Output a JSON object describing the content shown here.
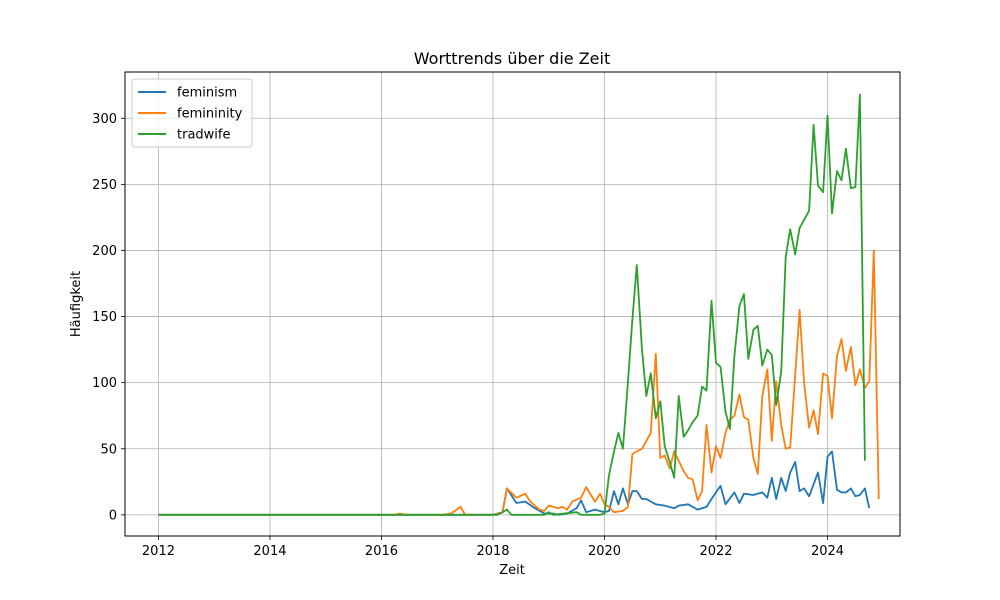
{
  "chart_data": {
    "type": "line",
    "title": "Worttrends über die Zeit",
    "xlabel": "Zeit",
    "ylabel": "Häufigkeit",
    "xlim": [
      2011.4,
      2025.3
    ],
    "ylim": [
      -16,
      335
    ],
    "x_ticks": [
      2012,
      2014,
      2016,
      2018,
      2020,
      2022,
      2024
    ],
    "y_ticks": [
      0,
      50,
      100,
      150,
      200,
      250,
      300
    ],
    "grid": true,
    "legend_position": "top-left",
    "series": [
      {
        "name": "feminism",
        "color": "#1f77b4",
        "points": [
          [
            2012.0,
            0
          ],
          [
            2018.0,
            0
          ],
          [
            2018.17,
            2
          ],
          [
            2018.25,
            20
          ],
          [
            2018.42,
            9
          ],
          [
            2018.58,
            10
          ],
          [
            2018.75,
            5
          ],
          [
            2018.92,
            1
          ],
          [
            2019.08,
            1
          ],
          [
            2019.17,
            0
          ],
          [
            2019.33,
            1
          ],
          [
            2019.5,
            5
          ],
          [
            2019.58,
            11
          ],
          [
            2019.67,
            2
          ],
          [
            2019.83,
            4
          ],
          [
            2020.0,
            2
          ],
          [
            2020.08,
            3
          ],
          [
            2020.17,
            18
          ],
          [
            2020.25,
            8
          ],
          [
            2020.33,
            20
          ],
          [
            2020.42,
            8
          ],
          [
            2020.5,
            18
          ],
          [
            2020.58,
            18
          ],
          [
            2020.67,
            12
          ],
          [
            2020.75,
            12
          ],
          [
            2020.92,
            8
          ],
          [
            2021.08,
            7
          ],
          [
            2021.25,
            5
          ],
          [
            2021.33,
            7
          ],
          [
            2021.5,
            8
          ],
          [
            2021.67,
            4
          ],
          [
            2021.83,
            6
          ],
          [
            2021.92,
            12
          ],
          [
            2022.08,
            22
          ],
          [
            2022.17,
            8
          ],
          [
            2022.33,
            17
          ],
          [
            2022.42,
            9
          ],
          [
            2022.5,
            16
          ],
          [
            2022.67,
            15
          ],
          [
            2022.83,
            17
          ],
          [
            2022.92,
            13
          ],
          [
            2023.0,
            28
          ],
          [
            2023.08,
            12
          ],
          [
            2023.17,
            28
          ],
          [
            2023.25,
            18
          ],
          [
            2023.33,
            32
          ],
          [
            2023.42,
            40
          ],
          [
            2023.5,
            18
          ],
          [
            2023.58,
            20
          ],
          [
            2023.67,
            14
          ],
          [
            2023.83,
            32
          ],
          [
            2023.92,
            9
          ],
          [
            2024.0,
            44
          ],
          [
            2024.08,
            48
          ],
          [
            2024.17,
            19
          ],
          [
            2024.25,
            17
          ],
          [
            2024.33,
            17
          ],
          [
            2024.42,
            20
          ],
          [
            2024.5,
            14
          ],
          [
            2024.58,
            15
          ],
          [
            2024.67,
            20
          ],
          [
            2024.75,
            5
          ]
        ]
      },
      {
        "name": "femininity",
        "color": "#ff7f0e",
        "points": [
          [
            2012.0,
            0
          ],
          [
            2016.25,
            0
          ],
          [
            2016.33,
            1
          ],
          [
            2016.42,
            0
          ],
          [
            2017.08,
            0
          ],
          [
            2017.25,
            1
          ],
          [
            2017.42,
            6
          ],
          [
            2017.5,
            0
          ],
          [
            2018.0,
            0
          ],
          [
            2018.17,
            2
          ],
          [
            2018.25,
            20
          ],
          [
            2018.42,
            13
          ],
          [
            2018.58,
            16
          ],
          [
            2018.67,
            10
          ],
          [
            2018.83,
            4
          ],
          [
            2018.92,
            3
          ],
          [
            2019.0,
            7
          ],
          [
            2019.17,
            5
          ],
          [
            2019.25,
            6
          ],
          [
            2019.33,
            4
          ],
          [
            2019.42,
            10
          ],
          [
            2019.58,
            13
          ],
          [
            2019.67,
            21
          ],
          [
            2019.83,
            10
          ],
          [
            2019.92,
            16
          ],
          [
            2020.0,
            8
          ],
          [
            2020.08,
            6
          ],
          [
            2020.17,
            2
          ],
          [
            2020.33,
            3
          ],
          [
            2020.42,
            6
          ],
          [
            2020.5,
            46
          ],
          [
            2020.58,
            48
          ],
          [
            2020.67,
            50
          ],
          [
            2020.83,
            62
          ],
          [
            2020.92,
            122
          ],
          [
            2021.0,
            43
          ],
          [
            2021.08,
            45
          ],
          [
            2021.17,
            35
          ],
          [
            2021.25,
            48
          ],
          [
            2021.42,
            33
          ],
          [
            2021.5,
            28
          ],
          [
            2021.58,
            27
          ],
          [
            2021.67,
            11
          ],
          [
            2021.75,
            18
          ],
          [
            2021.83,
            68
          ],
          [
            2021.92,
            32
          ],
          [
            2022.0,
            52
          ],
          [
            2022.08,
            43
          ],
          [
            2022.17,
            62
          ],
          [
            2022.25,
            72
          ],
          [
            2022.33,
            75
          ],
          [
            2022.42,
            91
          ],
          [
            2022.5,
            74
          ],
          [
            2022.58,
            72
          ],
          [
            2022.67,
            43
          ],
          [
            2022.75,
            31
          ],
          [
            2022.83,
            90
          ],
          [
            2022.92,
            110
          ],
          [
            2023.0,
            56
          ],
          [
            2023.08,
            101
          ],
          [
            2023.17,
            68
          ],
          [
            2023.25,
            50
          ],
          [
            2023.33,
            51
          ],
          [
            2023.42,
            106
          ],
          [
            2023.5,
            155
          ],
          [
            2023.58,
            100
          ],
          [
            2023.67,
            66
          ],
          [
            2023.75,
            79
          ],
          [
            2023.83,
            61
          ],
          [
            2023.92,
            107
          ],
          [
            2024.0,
            105
          ],
          [
            2024.08,
            73
          ],
          [
            2024.17,
            120
          ],
          [
            2024.25,
            133
          ],
          [
            2024.33,
            109
          ],
          [
            2024.42,
            127
          ],
          [
            2024.5,
            98
          ],
          [
            2024.58,
            110
          ],
          [
            2024.67,
            96
          ],
          [
            2024.75,
            101
          ],
          [
            2024.83,
            200
          ],
          [
            2024.92,
            12
          ]
        ]
      },
      {
        "name": "tradwife",
        "color": "#2ca02c",
        "points": [
          [
            2012.0,
            0
          ],
          [
            2018.08,
            0
          ],
          [
            2018.17,
            2
          ],
          [
            2018.25,
            4
          ],
          [
            2018.33,
            0
          ],
          [
            2018.92,
            0
          ],
          [
            2019.0,
            2
          ],
          [
            2019.08,
            0
          ],
          [
            2019.5,
            2
          ],
          [
            2019.58,
            0
          ],
          [
            2019.92,
            0
          ],
          [
            2020.0,
            1
          ],
          [
            2020.08,
            30
          ],
          [
            2020.17,
            48
          ],
          [
            2020.25,
            62
          ],
          [
            2020.33,
            50
          ],
          [
            2020.42,
            100
          ],
          [
            2020.5,
            148
          ],
          [
            2020.58,
            189
          ],
          [
            2020.67,
            126
          ],
          [
            2020.75,
            90
          ],
          [
            2020.83,
            107
          ],
          [
            2020.92,
            73
          ],
          [
            2021.0,
            86
          ],
          [
            2021.08,
            52
          ],
          [
            2021.17,
            40
          ],
          [
            2021.25,
            28
          ],
          [
            2021.33,
            90
          ],
          [
            2021.42,
            59
          ],
          [
            2021.5,
            64
          ],
          [
            2021.58,
            70
          ],
          [
            2021.67,
            75
          ],
          [
            2021.75,
            97
          ],
          [
            2021.83,
            94
          ],
          [
            2021.92,
            162
          ],
          [
            2022.0,
            115
          ],
          [
            2022.08,
            112
          ],
          [
            2022.17,
            78
          ],
          [
            2022.25,
            65
          ],
          [
            2022.33,
            120
          ],
          [
            2022.42,
            158
          ],
          [
            2022.5,
            167
          ],
          [
            2022.58,
            118
          ],
          [
            2022.67,
            140
          ],
          [
            2022.75,
            143
          ],
          [
            2022.83,
            113
          ],
          [
            2022.92,
            125
          ],
          [
            2023.0,
            121
          ],
          [
            2023.08,
            83
          ],
          [
            2023.17,
            108
          ],
          [
            2023.25,
            195
          ],
          [
            2023.33,
            216
          ],
          [
            2023.42,
            197
          ],
          [
            2023.5,
            217
          ],
          [
            2023.67,
            230
          ],
          [
            2023.75,
            295
          ],
          [
            2023.83,
            249
          ],
          [
            2023.92,
            244
          ],
          [
            2024.0,
            302
          ],
          [
            2024.08,
            228
          ],
          [
            2024.17,
            260
          ],
          [
            2024.25,
            253
          ],
          [
            2024.33,
            277
          ],
          [
            2024.42,
            247
          ],
          [
            2024.5,
            248
          ],
          [
            2024.58,
            318
          ],
          [
            2024.67,
            41
          ]
        ]
      }
    ]
  }
}
